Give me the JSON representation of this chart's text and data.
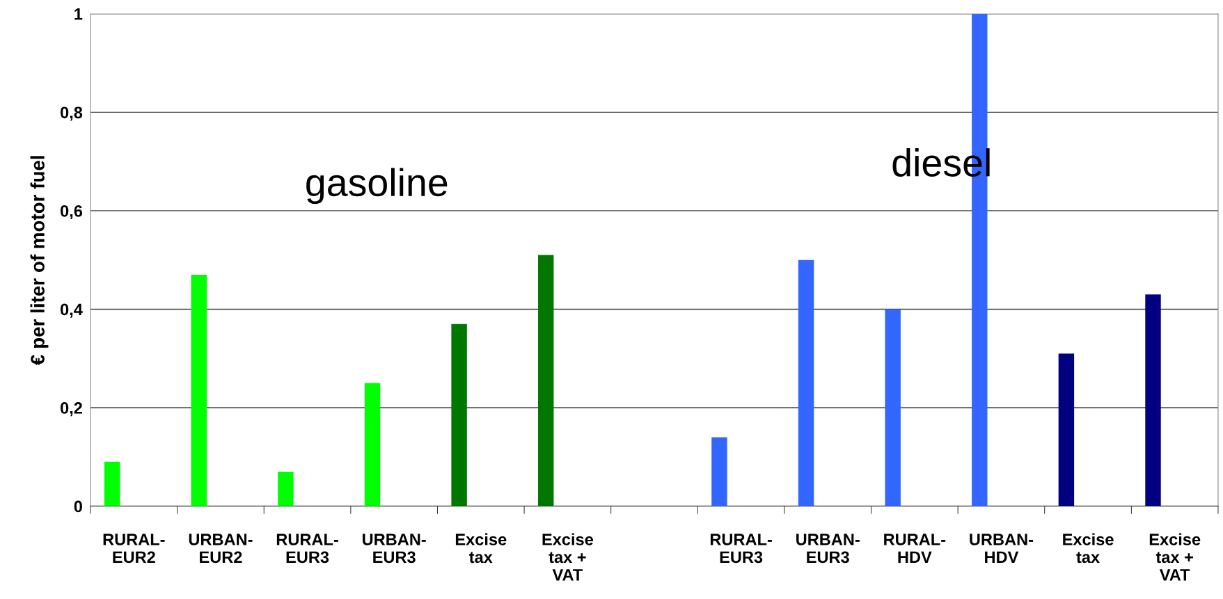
{
  "chart_data": {
    "type": "bar",
    "ylabel": "€ per liter of motor fuel",
    "categories": [
      "RURAL-\nEUR2",
      "URBAN-\nEUR2",
      "RURAL-\nEUR3",
      "URBAN-\nEUR3",
      "Excise\ntax",
      "Excise\ntax +\nVAT",
      null,
      "RURAL-\nEUR3",
      "URBAN-\nEUR3",
      "RURAL-\nHDV",
      "URBAN-\nHDV",
      "Excise\ntax",
      "Excise\ntax +\nVAT"
    ],
    "values": [
      0.09,
      0.47,
      0.07,
      0.25,
      0.37,
      0.51,
      null,
      0.14,
      0.5,
      0.4,
      1.0,
      0.31,
      0.43
    ],
    "colors": [
      "#00ff00",
      "#00ff00",
      "#00ff00",
      "#00ff00",
      "#007800",
      "#007800",
      null,
      "#3366ff",
      "#3366ff",
      "#3366ff",
      "#3366ff",
      "#000080",
      "#000080"
    ],
    "ylim": [
      0,
      1
    ],
    "yticks": [
      0,
      {
        "value": 0.2,
        "label": "0,2"
      },
      {
        "value": 0.4,
        "label": "0,4"
      },
      {
        "value": 0.6,
        "label": "0,6"
      },
      {
        "value": 0.8,
        "label": "0,8"
      },
      1
    ],
    "grid": "y",
    "annotations": [
      "gasoline",
      "diesel"
    ]
  }
}
